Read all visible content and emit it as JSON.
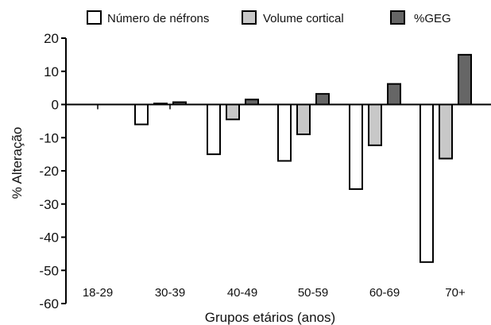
{
  "chart_data": {
    "type": "bar",
    "title": "",
    "xlabel": "Grupos etários (anos)",
    "ylabel": "% Alteração",
    "ylim": [
      -60,
      20
    ],
    "yticks": [
      20,
      10,
      0,
      -10,
      -20,
      -30,
      -40,
      -50,
      -60
    ],
    "grid": false,
    "legend_position": "top",
    "categories": [
      "18-29",
      "30-39",
      "40-49",
      "50-59",
      "60-69",
      "70+"
    ],
    "series": [
      {
        "name": "Número de néfrons",
        "color": "#ffffff",
        "values": [
          0,
          -6,
          -15,
          -17,
          -25.5,
          -47.5
        ]
      },
      {
        "name": "Volume cortical",
        "color": "#c8c8c8",
        "values": [
          0,
          0.3,
          -4.5,
          -9,
          -12.3,
          -16.3
        ]
      },
      {
        "name": "%GEG",
        "color": "#666666",
        "values": [
          0,
          0.7,
          1.5,
          3.2,
          6.2,
          15
        ]
      }
    ]
  }
}
